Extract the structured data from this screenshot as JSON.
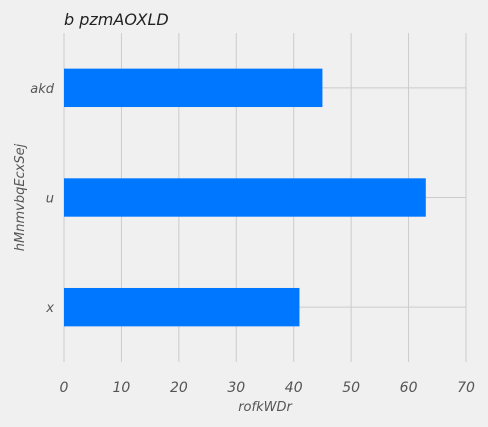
{
  "chart_data": {
    "type": "bar",
    "orientation": "horizontal",
    "title": "b pzmAOXLD",
    "xlabel": "rofkWDr",
    "ylabel": "hMnmvbqEcxSej",
    "categories": [
      "akd",
      "u",
      "x"
    ],
    "values": [
      45,
      63,
      41
    ],
    "xlim": [
      0,
      70
    ],
    "xticks": [
      0,
      10,
      20,
      30,
      40,
      50,
      60,
      70
    ],
    "grid": true,
    "bar_color": "#0077ff",
    "background": "#f0f0f0"
  }
}
